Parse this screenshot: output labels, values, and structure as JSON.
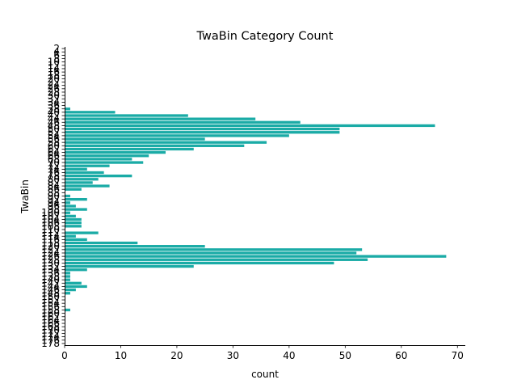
{
  "chart_data": {
    "type": "bar",
    "orientation": "horizontal",
    "title": "TwaBin Category Count",
    "xlabel": "count",
    "ylabel": "TwaBin",
    "bar_color": "#1aaba6",
    "xlim": [
      0,
      71.4
    ],
    "xticks": [
      0,
      10,
      20,
      30,
      40,
      50,
      60,
      70
    ],
    "grid": false,
    "categories": [
      2,
      4,
      6,
      8,
      10,
      12,
      14,
      16,
      18,
      20,
      22,
      24,
      26,
      28,
      30,
      32,
      34,
      36,
      38,
      40,
      42,
      44,
      46,
      48,
      50,
      52,
      54,
      56,
      58,
      60,
      62,
      64,
      66,
      68,
      70,
      72,
      74,
      76,
      78,
      80,
      82,
      84,
      86,
      88,
      90,
      92,
      94,
      96,
      98,
      100,
      102,
      104,
      106,
      108,
      110,
      112,
      114,
      116,
      118,
      120,
      122,
      124,
      126,
      128,
      130,
      132,
      134,
      136,
      138,
      140,
      142,
      144,
      146,
      148,
      150,
      152,
      154,
      156,
      158,
      160,
      162,
      164,
      166,
      168,
      170,
      172,
      174,
      176,
      178
    ],
    "values": [
      0,
      0,
      0,
      0,
      0,
      0,
      0,
      0,
      0,
      0,
      0,
      0,
      0,
      0,
      0,
      0,
      0,
      0,
      1,
      9,
      22,
      34,
      42,
      66,
      49,
      49,
      40,
      25,
      36,
      32,
      23,
      18,
      15,
      12,
      14,
      8,
      4,
      7,
      12,
      6,
      5,
      8,
      3,
      0,
      1,
      4,
      1,
      2,
      4,
      1,
      2,
      3,
      3,
      3,
      0,
      6,
      2,
      4,
      13,
      25,
      53,
      52,
      68,
      54,
      48,
      23,
      4,
      1,
      1,
      1,
      3,
      4,
      2,
      1,
      0,
      0,
      0,
      0,
      1,
      0,
      0,
      0,
      0,
      0,
      0,
      0,
      0,
      0,
      0
    ]
  }
}
